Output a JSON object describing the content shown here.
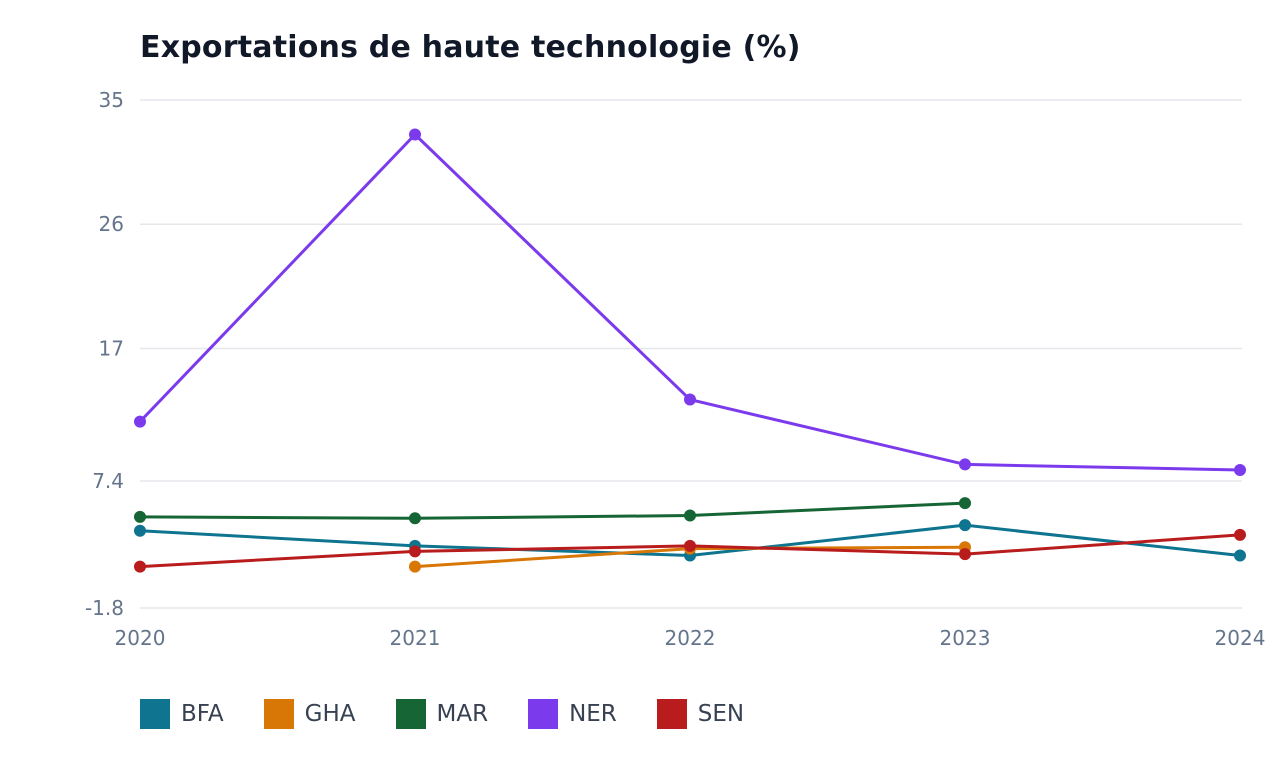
{
  "chart_data": {
    "type": "line",
    "title": "Exportations de haute technologie (%)",
    "xlabel": "",
    "ylabel": "",
    "categories": [
      "2020",
      "2021",
      "2022",
      "2023",
      "2024"
    ],
    "ylim": [
      -1.8,
      35
    ],
    "yticks": [
      -1.8,
      7.4,
      17,
      26,
      35
    ],
    "ytick_labels": [
      "-1.8",
      "7.4",
      "17",
      "26",
      "35"
    ],
    "grid": true,
    "legend_position": "bottom",
    "series": [
      {
        "name": "BFA",
        "color": "#0e7490",
        "values": [
          3.8,
          2.7,
          2.0,
          4.2,
          2.0
        ]
      },
      {
        "name": "GHA",
        "color": "#d97706",
        "values": [
          null,
          1.2,
          2.5,
          2.6,
          null
        ]
      },
      {
        "name": "MAR",
        "color": "#166534",
        "values": [
          4.8,
          4.7,
          4.9,
          5.8,
          null
        ]
      },
      {
        "name": "NER",
        "color": "#7c3aed",
        "values": [
          11.7,
          32.5,
          13.3,
          8.6,
          8.2
        ]
      },
      {
        "name": "SEN",
        "color": "#b91c1c",
        "values": [
          1.2,
          2.3,
          2.7,
          2.1,
          3.5
        ]
      }
    ]
  }
}
